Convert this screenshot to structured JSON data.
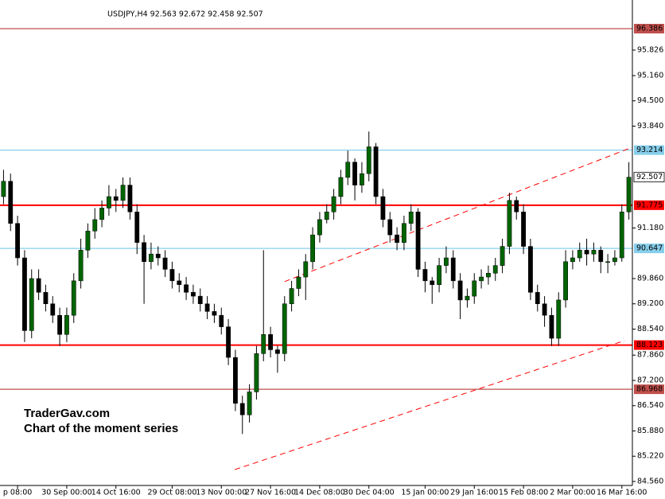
{
  "chart_data": {
    "type": "candlestick",
    "title": "USDJPY,H4  92.563 92.672 92.458 92.507",
    "annotations": [
      "TraderGav.com",
      "Chart of the moment series"
    ],
    "categories": [
      null,
      null,
      "p 08:00",
      null,
      null,
      null,
      null,
      null,
      null,
      "30 Sep 00:00",
      null,
      null,
      null,
      null,
      null,
      null,
      "14 Oct 16:00",
      null,
      null,
      null,
      null,
      null,
      null,
      null,
      "29 Oct 08:00",
      null,
      null,
      null,
      null,
      null,
      null,
      "13 Nov 00:00",
      null,
      null,
      null,
      null,
      null,
      null,
      "27 Nov 16:00",
      null,
      null,
      null,
      null,
      null,
      null,
      "14 Dec 08:00",
      null,
      null,
      null,
      null,
      null,
      null,
      "30 Dec 04:00",
      null,
      null,
      null,
      null,
      null,
      null,
      null,
      "15 Jan 00:00",
      null,
      null,
      null,
      null,
      null,
      null,
      "29 Jan 16:00",
      null,
      null,
      null,
      null,
      null,
      null,
      "15 Feb 08:00",
      null,
      null,
      null,
      null,
      null,
      null,
      "2 Mar 00:00",
      null,
      null,
      null,
      null,
      null,
      null,
      "16 Mar 16:00",
      null
    ],
    "xlim": [
      -0.5,
      89.5
    ],
    "open": [
      92.0,
      92.4,
      91.3,
      90.4,
      88.5,
      89.86,
      89.5,
      89.2,
      88.9,
      88.4,
      88.9,
      89.8,
      90.6,
      91.1,
      91.4,
      91.7,
      92.0,
      91.9,
      92.3,
      91.6,
      90.8,
      90.3,
      90.5,
      90.4,
      90.1,
      89.8,
      89.7,
      89.5,
      89.4,
      89.2,
      89.0,
      88.9,
      88.6,
      87.8,
      86.6,
      86.3,
      86.9,
      87.9,
      88.4,
      88.0,
      87.9,
      89.2,
      89.6,
      89.9,
      90.3,
      91.0,
      91.4,
      91.6,
      92.0,
      92.5,
      92.9,
      92.3,
      92.6,
      93.3,
      92.0,
      91.4,
      91.0,
      90.8,
      91.3,
      91.6,
      90.1,
      89.8,
      89.7,
      90.2,
      90.4,
      89.8,
      89.3,
      89.4,
      89.8,
      89.9,
      90.0,
      90.2,
      90.7,
      91.9,
      91.6,
      90.7,
      89.5,
      89.2,
      88.9,
      88.3,
      89.3,
      90.3,
      90.4,
      90.6,
      90.5,
      90.6,
      90.3,
      90.3,
      90.4,
      91.6
    ],
    "high": [
      92.7,
      92.6,
      91.5,
      90.6,
      90.1,
      90.1,
      89.7,
      89.4,
      89.1,
      89.1,
      90.0,
      90.9,
      91.3,
      91.7,
      91.9,
      92.3,
      92.2,
      92.5,
      92.5,
      91.8,
      91.0,
      90.8,
      90.7,
      90.6,
      90.3,
      90.0,
      89.9,
      89.7,
      89.6,
      89.4,
      89.2,
      89.1,
      88.8,
      88.0,
      86.8,
      87.1,
      88.1,
      90.6,
      88.6,
      88.1,
      89.4,
      89.8,
      90.1,
      90.5,
      91.2,
      91.6,
      91.8,
      92.2,
      92.7,
      93.2,
      93.0,
      92.9,
      93.7,
      93.4,
      92.2,
      91.6,
      91.2,
      91.5,
      91.8,
      91.7,
      90.3,
      89.9,
      90.4,
      90.7,
      90.6,
      90.0,
      89.6,
      90.0,
      90.1,
      90.2,
      90.4,
      90.9,
      92.1,
      92.0,
      91.8,
      90.9,
      89.7,
      89.4,
      89.1,
      89.5,
      90.6,
      90.6,
      90.8,
      90.9,
      90.8,
      90.7,
      90.5,
      90.6,
      91.8,
      92.9
    ],
    "low": [
      91.8,
      91.1,
      90.2,
      88.2,
      88.3,
      89.3,
      89.0,
      88.7,
      88.1,
      88.2,
      88.7,
      89.6,
      90.4,
      90.9,
      91.2,
      91.5,
      91.6,
      91.7,
      91.4,
      90.5,
      89.2,
      90.1,
      90.2,
      89.9,
      89.6,
      89.5,
      89.3,
      89.2,
      89.0,
      88.8,
      88.7,
      88.4,
      87.6,
      86.4,
      85.8,
      86.1,
      86.7,
      87.7,
      87.8,
      87.4,
      87.7,
      89.0,
      89.4,
      89.3,
      90.1,
      90.8,
      91.3,
      91.4,
      91.8,
      92.3,
      91.9,
      92.1,
      92.4,
      91.8,
      91.2,
      90.8,
      90.6,
      90.6,
      91.1,
      89.9,
      89.5,
      89.2,
      89.5,
      90.0,
      89.6,
      88.8,
      89.1,
      89.2,
      89.6,
      89.7,
      89.8,
      90.0,
      90.5,
      91.4,
      90.5,
      89.3,
      89.0,
      88.6,
      88.1,
      88.1,
      89.1,
      90.1,
      90.3,
      90.2,
      90.3,
      90.0,
      90.0,
      90.2,
      90.3,
      91.4
    ],
    "close": [
      92.4,
      91.3,
      90.4,
      88.5,
      89.86,
      89.5,
      89.2,
      88.9,
      88.4,
      88.9,
      89.8,
      90.6,
      91.1,
      91.4,
      91.7,
      92.0,
      91.9,
      92.3,
      91.6,
      90.8,
      90.3,
      90.5,
      90.4,
      90.1,
      89.8,
      89.7,
      89.5,
      89.4,
      89.2,
      89.0,
      88.9,
      88.6,
      87.8,
      86.6,
      86.3,
      86.9,
      87.9,
      88.4,
      88.0,
      87.9,
      89.2,
      89.6,
      89.9,
      90.3,
      91.0,
      91.4,
      91.6,
      92.0,
      92.5,
      92.9,
      92.3,
      92.6,
      93.3,
      92.0,
      91.4,
      91.0,
      90.8,
      91.3,
      91.6,
      90.1,
      89.8,
      89.7,
      90.2,
      90.4,
      89.8,
      89.3,
      89.4,
      89.8,
      89.9,
      90.0,
      90.2,
      90.7,
      91.9,
      91.6,
      90.7,
      89.5,
      89.2,
      88.9,
      88.3,
      89.3,
      90.3,
      90.4,
      90.6,
      90.5,
      90.6,
      90.3,
      90.3,
      90.4,
      91.6,
      92.507
    ],
    "up_color": "#006400",
    "down_color": "#000000",
    "wick_color": "#000000",
    "ylim": [
      84.456,
      97.134
    ],
    "yticks": [
      95.826,
      {
        "value": 95.16,
        "label": "95.160"
      },
      {
        "value": 94.5,
        "label": "94.500"
      },
      {
        "value": 93.84,
        "label": "93.840"
      },
      {
        "value": 91.18,
        "label": "91.180"
      },
      {
        "value": 89.86,
        "label": "89.860"
      },
      {
        "value": 89.2,
        "label": "89.200"
      },
      {
        "value": 88.54,
        "label": "88.540"
      },
      {
        "value": 87.86,
        "label": "87.860"
      },
      {
        "value": 87.2,
        "label": "87.200"
      },
      {
        "value": 86.54,
        "label": "86.540"
      },
      {
        "value": 85.88,
        "label": "85.880"
      },
      {
        "value": 85.22,
        "label": "85.220"
      },
      {
        "value": 84.56,
        "label": "84.560"
      }
    ],
    "levels": [
      {
        "value": 96.386,
        "color": "#c0504d"
      },
      {
        "value": 93.214,
        "color": "#87ceeb"
      },
      {
        "value": 91.775,
        "color": "#ff0000"
      },
      {
        "value": 90.647,
        "color": "#87ceeb"
      },
      {
        "value": 88.123,
        "color": "#ff0000"
      },
      {
        "value": 86.968,
        "color": "#c0504d"
      }
    ],
    "current_price": 92.507,
    "trendlines": [
      {
        "x": [
          32.9,
          88.4
        ],
        "y": [
          84.87,
          88.24
        ],
        "color": "#ff0000"
      },
      {
        "x": [
          40.0,
          89.5
        ],
        "y": [
          89.78,
          93.29
        ],
        "color": "#ff0000"
      }
    ]
  }
}
